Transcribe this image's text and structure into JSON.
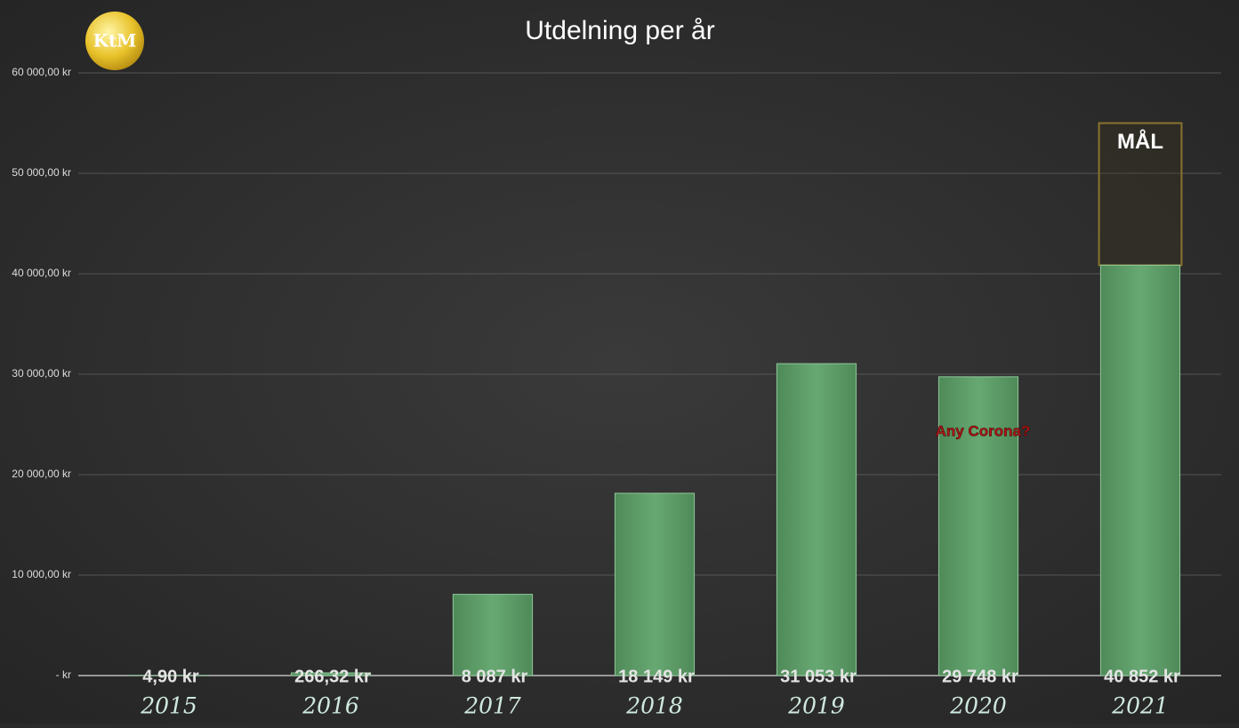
{
  "chart_data": {
    "type": "bar",
    "title": "Utdelning per år",
    "logo": "KtM",
    "categories": [
      "2015",
      "2016",
      "2017",
      "2018",
      "2019",
      "2020",
      "2021"
    ],
    "values": [
      4.9,
      266.32,
      8087,
      18149,
      31053,
      29748,
      40852
    ],
    "value_labels": [
      "4,90 kr",
      "266,32 kr",
      "8 087 kr",
      "18 149 kr",
      "31 053 kr",
      "29 748 kr",
      "40 852 kr"
    ],
    "color": "#5fa06a",
    "ylim": [
      0,
      60000
    ],
    "yticks": [
      {
        "value": 0,
        "label": "-   kr"
      },
      {
        "value": 10000,
        "label": "10 000,00 kr"
      },
      {
        "value": 20000,
        "label": "20 000,00 kr"
      },
      {
        "value": 30000,
        "label": "30 000,00 kr"
      },
      {
        "value": 40000,
        "label": "40 000,00 kr"
      },
      {
        "value": 50000,
        "label": "50 000,00 kr"
      },
      {
        "value": 60000,
        "label": "60 000,00 kr"
      }
    ],
    "grid": true,
    "target": {
      "label": "MÅL",
      "value": 55000
    },
    "annotation": "Any Corona?"
  }
}
